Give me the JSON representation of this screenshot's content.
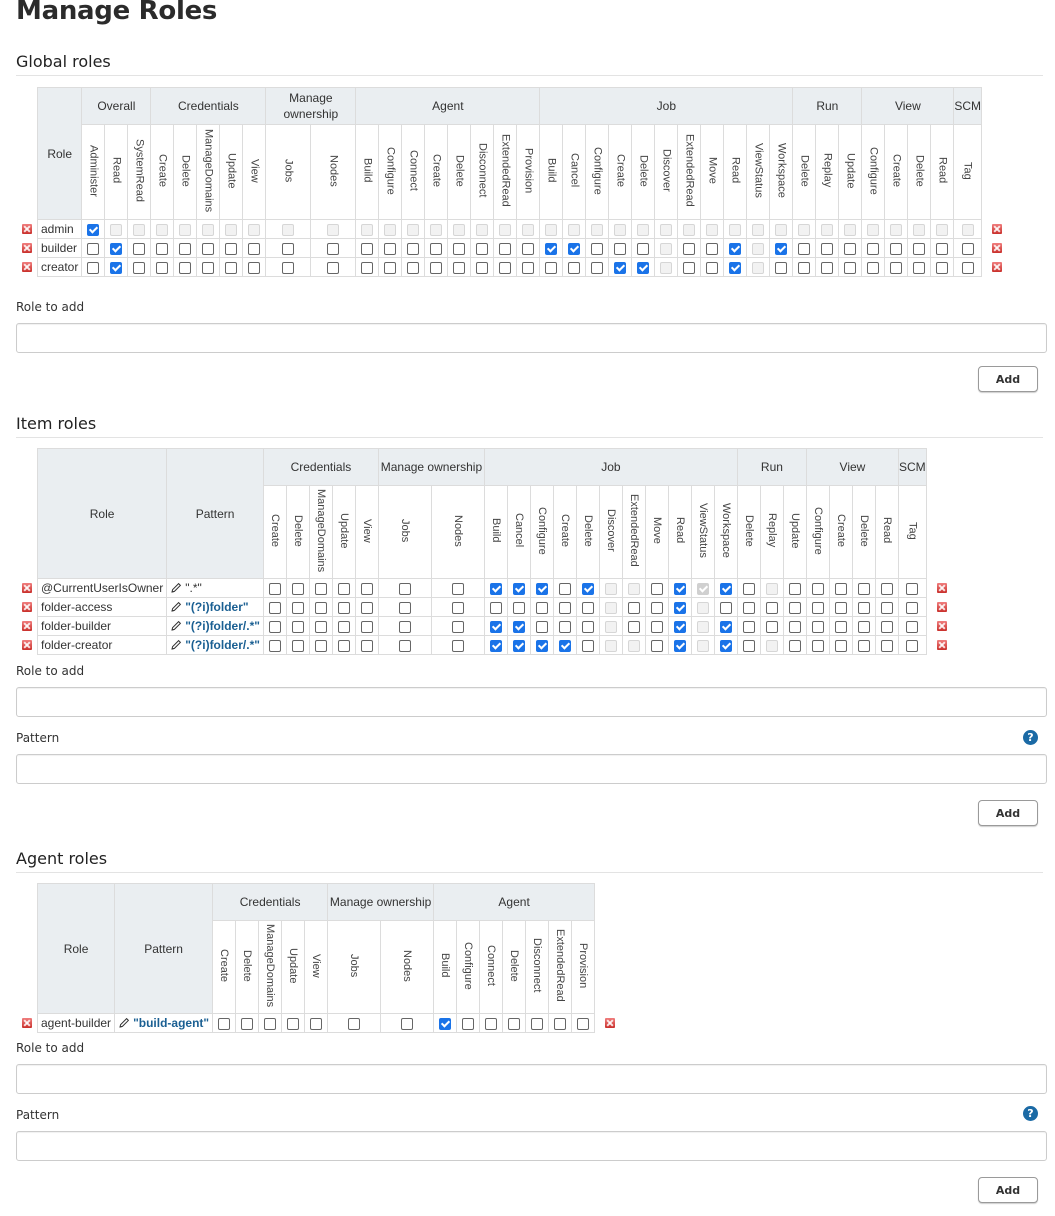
{
  "page": {
    "title": "Manage Roles"
  },
  "colors": {
    "accent": "#1a73e8",
    "pattern_text": "#1a5f92",
    "help_icon": "#1b6aa5",
    "delete_icon": "#c9302c",
    "header_bg": "#eaeef1"
  },
  "global": {
    "title": "Global roles",
    "role_header": "Role",
    "groups": [
      {
        "name": "Overall",
        "perms": [
          "Administer",
          "Read",
          "SystemRead"
        ]
      },
      {
        "name": "Credentials",
        "perms": [
          "Create",
          "Delete",
          "ManageDomains",
          "Update",
          "View"
        ]
      },
      {
        "name": "Manage ownership",
        "perms": [
          "Jobs",
          "Nodes"
        ]
      },
      {
        "name": "Agent",
        "perms": [
          "Build",
          "Configure",
          "Connect",
          "Create",
          "Delete",
          "Disconnect",
          "ExtendedRead",
          "Provision"
        ]
      },
      {
        "name": "Job",
        "perms": [
          "Build",
          "Cancel",
          "Configure",
          "Create",
          "Delete",
          "Discover",
          "ExtendedRead",
          "Move",
          "Read",
          "ViewStatus",
          "Workspace"
        ]
      },
      {
        "name": "Run",
        "perms": [
          "Delete",
          "Replay",
          "Update"
        ]
      },
      {
        "name": "View",
        "perms": [
          "Configure",
          "Create",
          "Delete",
          "Read"
        ]
      },
      {
        "name": "SCM",
        "perms": [
          "Tag"
        ]
      }
    ],
    "rows": [
      {
        "role": "admin",
        "checked": [
          "Overall.Administer"
        ],
        "disabled_all_except": [
          "Overall.Administer"
        ],
        "disabled": []
      },
      {
        "role": "builder",
        "checked": [
          "Overall.Read",
          "Job.Build",
          "Job.Cancel",
          "Job.Read",
          "Job.Workspace"
        ],
        "disabled": [
          "Job.Discover",
          "Job.ViewStatus"
        ]
      },
      {
        "role": "creator",
        "checked": [
          "Overall.Read",
          "Job.Create",
          "Job.Delete",
          "Job.Read"
        ],
        "disabled": [
          "Job.Discover",
          "Job.ViewStatus"
        ]
      }
    ],
    "role_to_add_label": "Role to add",
    "role_to_add_value": "",
    "add_label": "Add"
  },
  "item": {
    "title": "Item roles",
    "role_header": "Role",
    "pattern_header": "Pattern",
    "groups": [
      {
        "name": "Credentials",
        "perms": [
          "Create",
          "Delete",
          "ManageDomains",
          "Update",
          "View"
        ]
      },
      {
        "name": "Manage ownership",
        "perms": [
          "Jobs",
          "Nodes"
        ]
      },
      {
        "name": "Job",
        "perms": [
          "Build",
          "Cancel",
          "Configure",
          "Create",
          "Delete",
          "Discover",
          "ExtendedRead",
          "Move",
          "Read",
          "ViewStatus",
          "Workspace"
        ]
      },
      {
        "name": "Run",
        "perms": [
          "Delete",
          "Replay",
          "Update"
        ]
      },
      {
        "name": "View",
        "perms": [
          "Configure",
          "Create",
          "Delete",
          "Read"
        ]
      },
      {
        "name": "SCM",
        "perms": [
          "Tag"
        ]
      }
    ],
    "rows": [
      {
        "role": "@CurrentUserIsOwner",
        "pattern": "\".*\"",
        "pattern_bold": false,
        "checked": [
          "Job.Build",
          "Job.Cancel",
          "Job.Configure",
          "Job.Delete",
          "Job.Read",
          "Job.ViewStatus",
          "Job.Workspace"
        ],
        "disabled": [
          "Job.Discover",
          "Job.ExtendedRead",
          "Job.ViewStatus",
          "Run.Replay"
        ]
      },
      {
        "role": "folder-access",
        "pattern": "\"(?i)folder\"",
        "pattern_bold": true,
        "checked": [
          "Job.Read"
        ],
        "disabled": [
          "Job.Discover",
          "Job.ViewStatus"
        ]
      },
      {
        "role": "folder-builder",
        "pattern": "\"(?i)folder/.*\"",
        "pattern_bold": true,
        "checked": [
          "Job.Build",
          "Job.Cancel",
          "Job.Read",
          "Job.Workspace"
        ],
        "disabled": [
          "Job.Discover",
          "Job.ViewStatus"
        ]
      },
      {
        "role": "folder-creator",
        "pattern": "\"(?i)folder/.*\"",
        "pattern_bold": true,
        "checked": [
          "Job.Build",
          "Job.Cancel",
          "Job.Configure",
          "Job.Create",
          "Job.Read",
          "Job.Workspace"
        ],
        "disabled": [
          "Job.Discover",
          "Job.ExtendedRead",
          "Job.ViewStatus",
          "Run.Replay"
        ]
      }
    ],
    "role_to_add_label": "Role to add",
    "role_to_add_value": "",
    "pattern_label": "Pattern",
    "pattern_value": "",
    "help_glyph": "?",
    "add_label": "Add"
  },
  "agent": {
    "title": "Agent roles",
    "role_header": "Role",
    "pattern_header": "Pattern",
    "groups": [
      {
        "name": "Credentials",
        "perms": [
          "Create",
          "Delete",
          "ManageDomains",
          "Update",
          "View"
        ]
      },
      {
        "name": "Manage ownership",
        "perms": [
          "Jobs",
          "Nodes"
        ]
      },
      {
        "name": "Agent",
        "perms": [
          "Build",
          "Configure",
          "Connect",
          "Delete",
          "Disconnect",
          "ExtendedRead",
          "Provision"
        ]
      }
    ],
    "rows": [
      {
        "role": "agent-builder",
        "pattern": "\"build-agent\"",
        "pattern_bold": true,
        "checked": [
          "Agent.Build"
        ],
        "disabled": []
      }
    ],
    "role_to_add_label": "Role to add",
    "role_to_add_value": "",
    "pattern_label": "Pattern",
    "pattern_value": "",
    "help_glyph": "?",
    "add_label": "Add"
  }
}
